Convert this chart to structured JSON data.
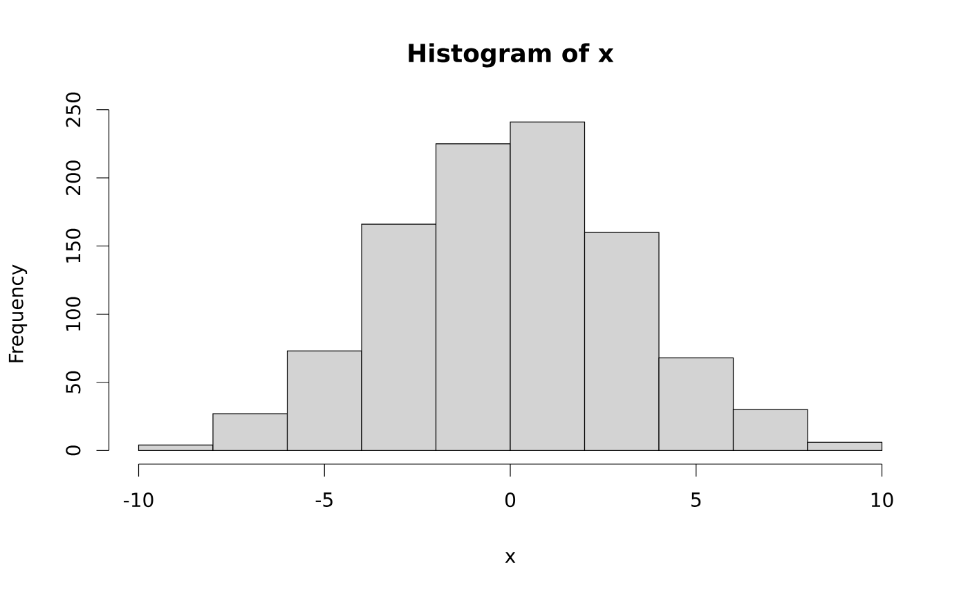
{
  "chart_data": {
    "type": "histogram",
    "title": "Histogram of x",
    "xlabel": "x",
    "ylabel": "Frequency",
    "bins": [
      -10,
      -8,
      -6,
      -4,
      -2,
      0,
      2,
      4,
      6,
      8,
      10
    ],
    "values": [
      4,
      27,
      73,
      166,
      225,
      241,
      160,
      68,
      30,
      6
    ],
    "color": "#d3d3d3",
    "xlim": [
      -10,
      10
    ],
    "ylim": [
      0,
      250
    ],
    "xticks": [
      -10,
      -5,
      0,
      5,
      10
    ],
    "yticks": [
      0,
      50,
      100,
      150,
      200,
      250
    ]
  }
}
